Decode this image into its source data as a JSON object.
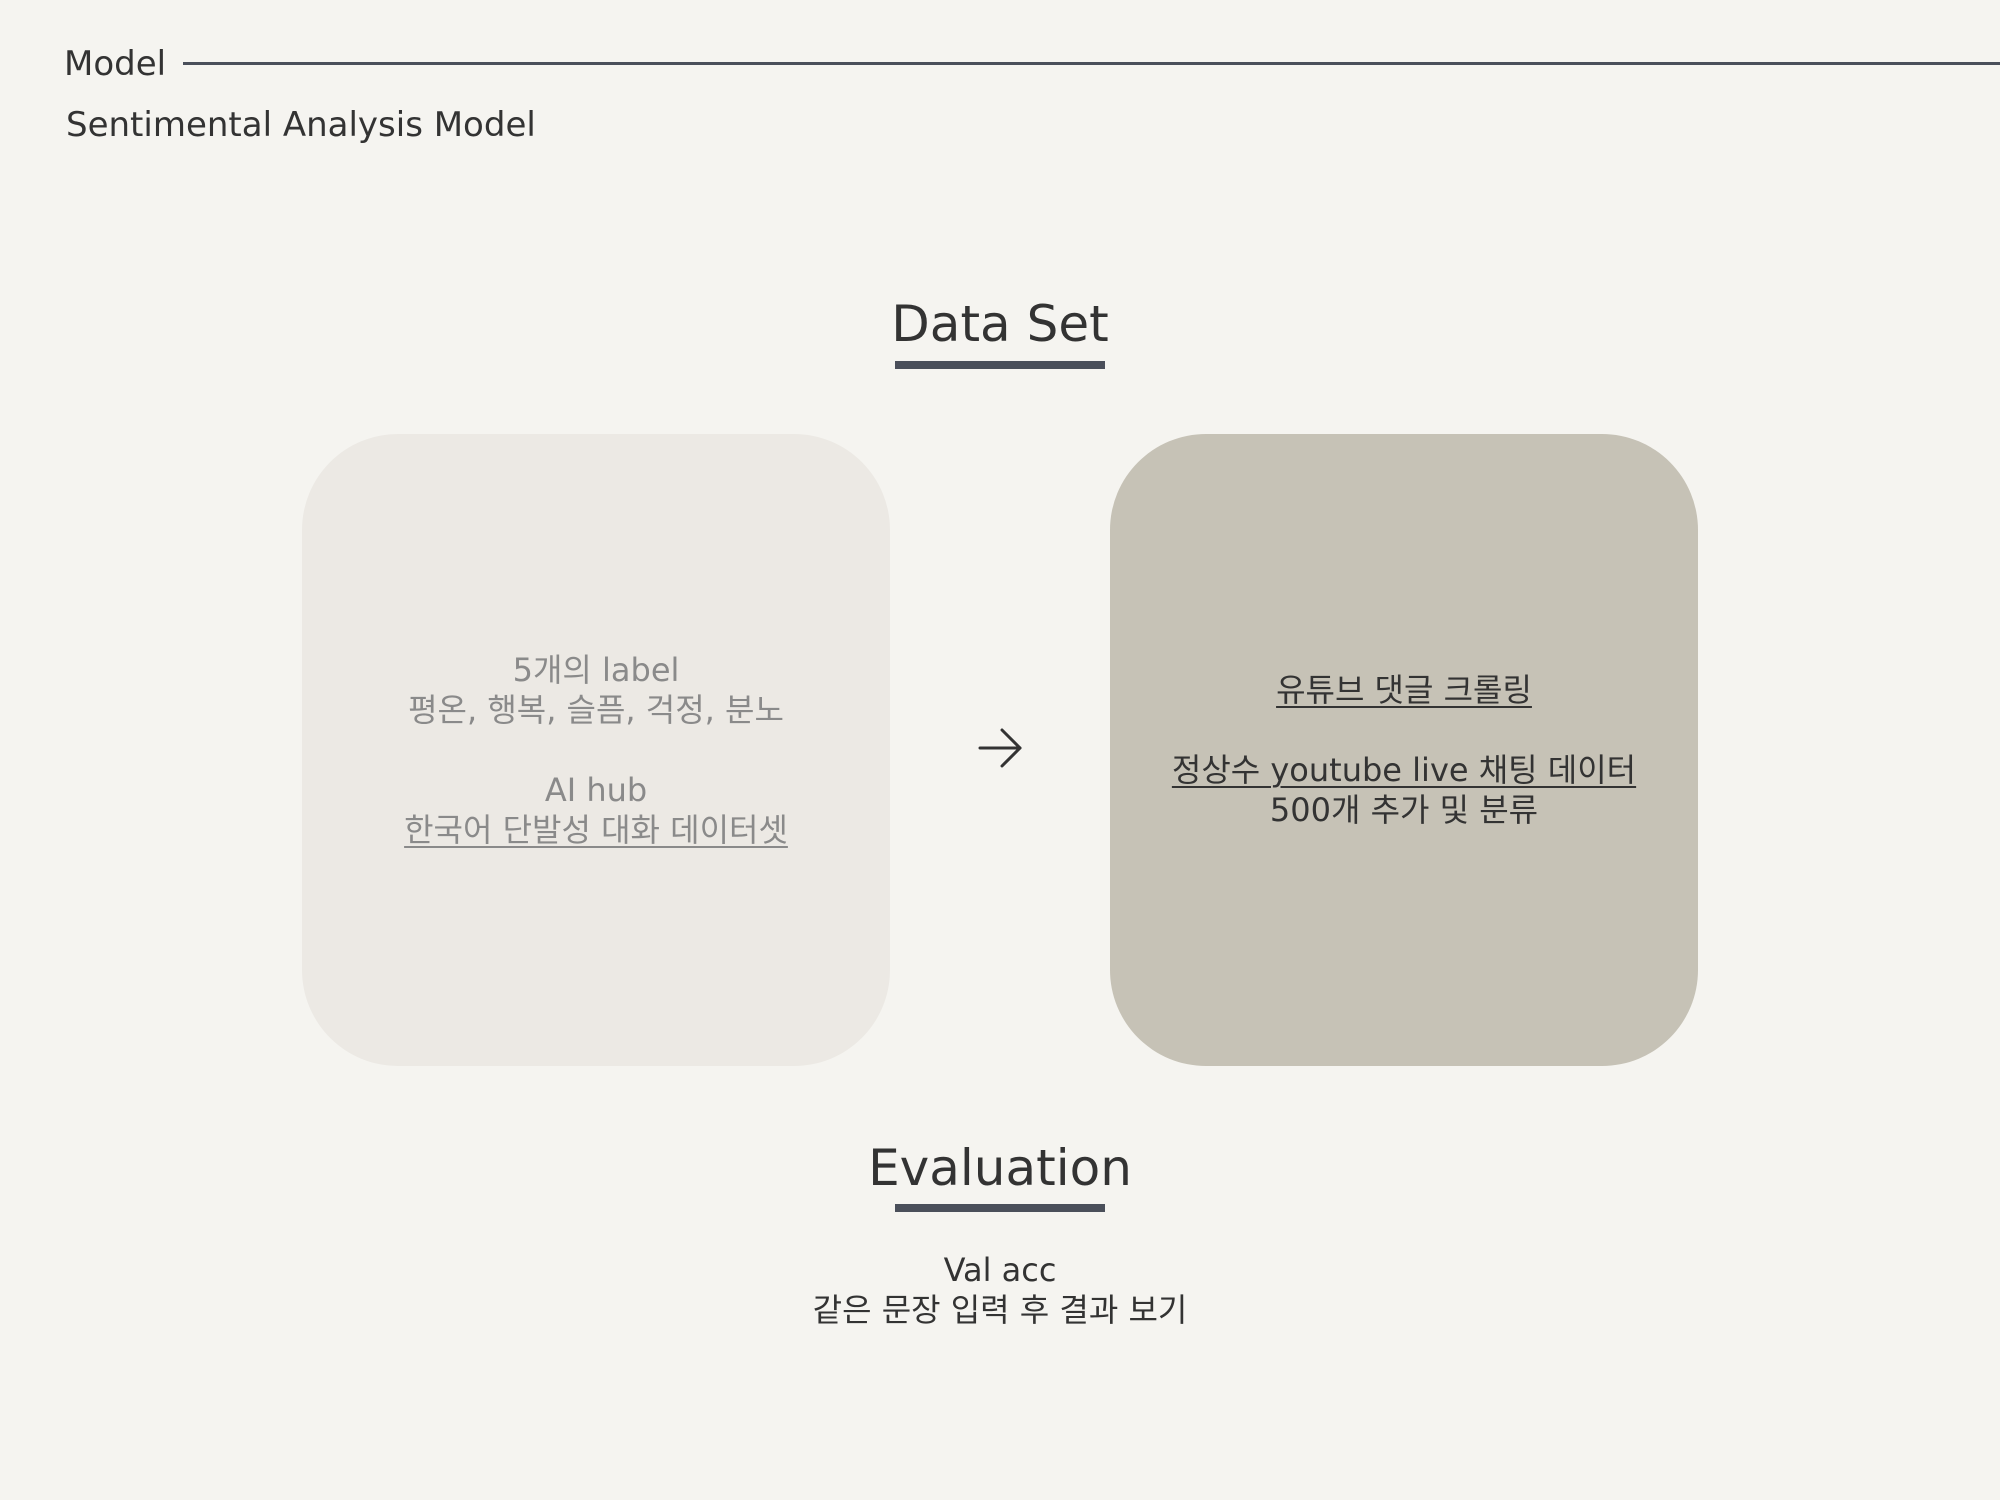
{
  "header": {
    "title": "Model",
    "subtitle": "Sentimental Analysis Model"
  },
  "dataset": {
    "heading": "Data Set",
    "left_card": {
      "line1": "5개의 label",
      "line2": "평온, 행복, 슬픔, 걱정, 분노",
      "line3": "AI hub",
      "line4": "한국어 단발성 대화 데이터셋"
    },
    "arrow_icon": "arrow-right-icon",
    "right_card": {
      "line1": "유튜브 댓글 크롤링",
      "line2": "정상수 youtube live 채팅 데이터",
      "line3": "500개 추가 및 분류"
    }
  },
  "evaluation": {
    "heading": "Evaluation",
    "line1": "Val acc",
    "line2": "같은 문장 입력 후 결과 보기"
  },
  "colors": {
    "background": "#f5f4f0",
    "accent_rule": "#4a4f5a",
    "left_card": "#ece9e4",
    "right_card": "#c6c2b6"
  }
}
